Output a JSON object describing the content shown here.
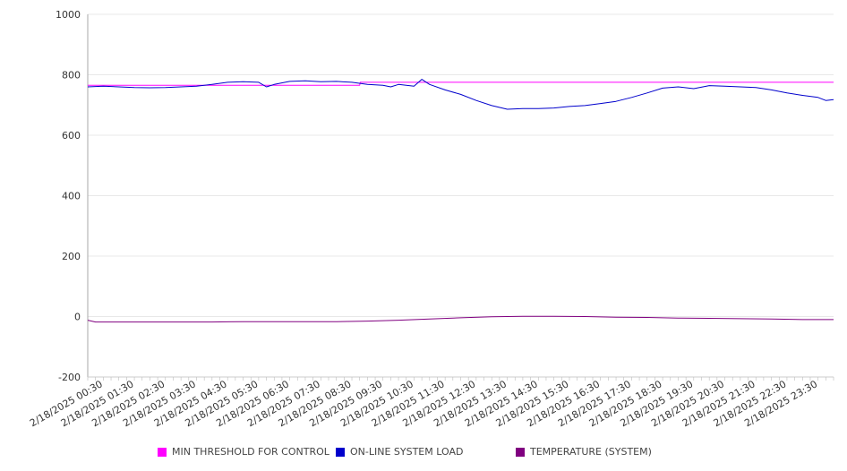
{
  "chart_data": {
    "type": "line",
    "ylim": [
      -200,
      1000
    ],
    "yticks": [
      -200,
      0,
      200,
      400,
      600,
      800,
      1000
    ],
    "grid": true,
    "legend_position": "bottom",
    "x_start": "2/18/2025 00:00",
    "x_end": "2/18/2025 24:00",
    "x_tick_labels": [
      "2/18/2025 00:30",
      "2/18/2025 01:30",
      "2/18/2025 02:30",
      "2/18/2025 03:30",
      "2/18/2025 04:30",
      "2/18/2025 05:30",
      "2/18/2025 06:30",
      "2/18/2025 07:30",
      "2/18/2025 08:30",
      "2/18/2025 09:30",
      "2/18/2025 10:30",
      "2/18/2025 11:30",
      "2/18/2025 12:30",
      "2/18/2025 13:30",
      "2/18/2025 14:30",
      "2/18/2025 15:30",
      "2/18/2025 16:30",
      "2/18/2025 17:30",
      "2/18/2025 18:30",
      "2/18/2025 19:30",
      "2/18/2025 20:30",
      "2/18/2025 21:30",
      "2/18/2025 22:30",
      "2/18/2025 23:30"
    ],
    "series": [
      {
        "name": "MIN THRESHOLD FOR CONTROL",
        "color": "#ff00ff",
        "x": [
          "00:00",
          "08:45",
          "08:46",
          "24:00"
        ],
        "values": [
          765,
          765,
          775,
          775
        ]
      },
      {
        "name": "ON-LINE SYSTEM LOAD",
        "color": "#0000cc",
        "x": [
          "00:00",
          "00:30",
          "01:00",
          "01:30",
          "02:00",
          "02:30",
          "03:00",
          "03:30",
          "04:00",
          "04:30",
          "05:00",
          "05:30",
          "05:45",
          "06:00",
          "06:30",
          "07:00",
          "07:30",
          "08:00",
          "08:30",
          "09:00",
          "09:30",
          "09:45",
          "10:00",
          "10:30",
          "10:45",
          "11:00",
          "11:30",
          "12:00",
          "12:30",
          "13:00",
          "13:30",
          "14:00",
          "14:30",
          "15:00",
          "15:30",
          "16:00",
          "16:30",
          "17:00",
          "17:30",
          "18:00",
          "18:30",
          "19:00",
          "19:30",
          "20:00",
          "20:30",
          "21:00",
          "21:30",
          "22:00",
          "22:30",
          "23:00",
          "23:30",
          "23:45",
          "24:00"
        ],
        "values": [
          760,
          762,
          760,
          758,
          757,
          758,
          760,
          762,
          768,
          775,
          777,
          775,
          760,
          768,
          778,
          780,
          777,
          778,
          775,
          768,
          765,
          760,
          768,
          762,
          785,
          768,
          750,
          735,
          715,
          698,
          686,
          688,
          688,
          690,
          695,
          698,
          705,
          712,
          725,
          740,
          756,
          760,
          754,
          764,
          762,
          760,
          758,
          750,
          740,
          732,
          725,
          715,
          718
        ]
      },
      {
        "name": "TEMPERATURE (SYSTEM)",
        "color": "#800080",
        "x": [
          "00:00",
          "00:15",
          "01:00",
          "02:00",
          "03:00",
          "04:00",
          "05:00",
          "06:00",
          "07:00",
          "08:00",
          "09:00",
          "10:00",
          "11:00",
          "12:00",
          "13:00",
          "14:00",
          "15:00",
          "16:00",
          "17:00",
          "18:00",
          "19:00",
          "20:00",
          "21:00",
          "22:00",
          "23:00",
          "24:00"
        ],
        "values": [
          -12,
          -18,
          -18,
          -18,
          -18,
          -18,
          -17,
          -17,
          -17,
          -17,
          -15,
          -12,
          -8,
          -4,
          -1,
          1,
          1,
          0,
          -2,
          -3,
          -5,
          -6,
          -7,
          -8,
          -10,
          -10
        ]
      }
    ]
  }
}
